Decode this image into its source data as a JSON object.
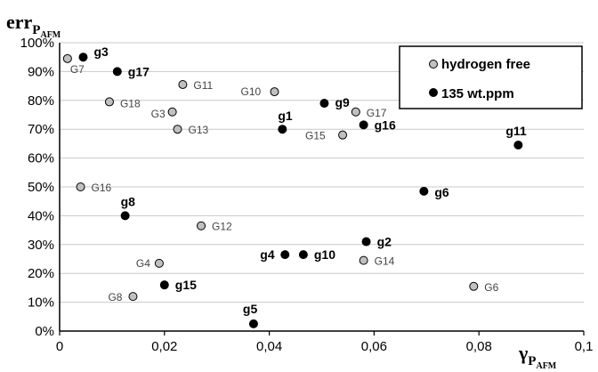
{
  "chart_data": {
    "type": "scatter",
    "ylabel_main": "err",
    "ylabel_sub": "P",
    "ylabel_subsub": "AFM",
    "xlabel_main": "γ",
    "xlabel_sub": "P",
    "xlabel_subsub": "AFM",
    "xlim": [
      0,
      0.1
    ],
    "ylim": [
      0,
      100
    ],
    "x_ticks": [
      {
        "value": 0,
        "label": "0"
      },
      {
        "value": 0.02,
        "label": "0,02"
      },
      {
        "value": 0.04,
        "label": "0,04"
      },
      {
        "value": 0.06,
        "label": "0,06"
      },
      {
        "value": 0.08,
        "label": "0,08"
      },
      {
        "value": 0.1,
        "label": "0,1"
      }
    ],
    "y_ticks": [
      {
        "value": 0,
        "label": "0%"
      },
      {
        "value": 10,
        "label": "10%"
      },
      {
        "value": 20,
        "label": "20%"
      },
      {
        "value": 30,
        "label": "30%"
      },
      {
        "value": 40,
        "label": "40%"
      },
      {
        "value": 50,
        "label": "50%"
      },
      {
        "value": 60,
        "label": "60%"
      },
      {
        "value": 70,
        "label": "70%"
      },
      {
        "value": 80,
        "label": "80%"
      },
      {
        "value": 90,
        "label": "90%"
      },
      {
        "value": 100,
        "label": "100%"
      }
    ],
    "grid": "horizontal",
    "legend_position": "top-right",
    "series": [
      {
        "name": "hydrogen free",
        "color": "#c0c0c0",
        "points": [
          {
            "label": "G7",
            "x": 0.0015,
            "y": 94.5
          },
          {
            "label": "G18",
            "x": 0.0095,
            "y": 79.5
          },
          {
            "label": "G11",
            "x": 0.0235,
            "y": 85.5
          },
          {
            "label": "G3",
            "x": 0.0215,
            "y": 76
          },
          {
            "label": "G13",
            "x": 0.0225,
            "y": 70
          },
          {
            "label": "G10",
            "x": 0.041,
            "y": 83
          },
          {
            "label": "G17",
            "x": 0.0565,
            "y": 76
          },
          {
            "label": "G15",
            "x": 0.054,
            "y": 68
          },
          {
            "label": "G16",
            "x": 0.004,
            "y": 50
          },
          {
            "label": "G12",
            "x": 0.027,
            "y": 36.5
          },
          {
            "label": "G4",
            "x": 0.019,
            "y": 23.5
          },
          {
            "label": "G8",
            "x": 0.014,
            "y": 12
          },
          {
            "label": "G14",
            "x": 0.058,
            "y": 24.5
          },
          {
            "label": "G6",
            "x": 0.079,
            "y": 15.5
          }
        ]
      },
      {
        "name": "135 wt.ppm",
        "color": "#000000",
        "points": [
          {
            "label": "g3",
            "x": 0.0045,
            "y": 95
          },
          {
            "label": "g17",
            "x": 0.011,
            "y": 90
          },
          {
            "label": "g1",
            "x": 0.0425,
            "y": 70
          },
          {
            "label": "g9",
            "x": 0.0505,
            "y": 79
          },
          {
            "label": "g16",
            "x": 0.058,
            "y": 71.5
          },
          {
            "label": "g11",
            "x": 0.0875,
            "y": 64.5
          },
          {
            "label": "g6",
            "x": 0.0695,
            "y": 48.5
          },
          {
            "label": "g8",
            "x": 0.0125,
            "y": 40
          },
          {
            "label": "g2",
            "x": 0.0585,
            "y": 31
          },
          {
            "label": "g4",
            "x": 0.043,
            "y": 26.5
          },
          {
            "label": "g10",
            "x": 0.0465,
            "y": 26.5
          },
          {
            "label": "g15",
            "x": 0.02,
            "y": 16
          },
          {
            "label": "g5",
            "x": 0.037,
            "y": 2.5
          }
        ]
      }
    ]
  }
}
